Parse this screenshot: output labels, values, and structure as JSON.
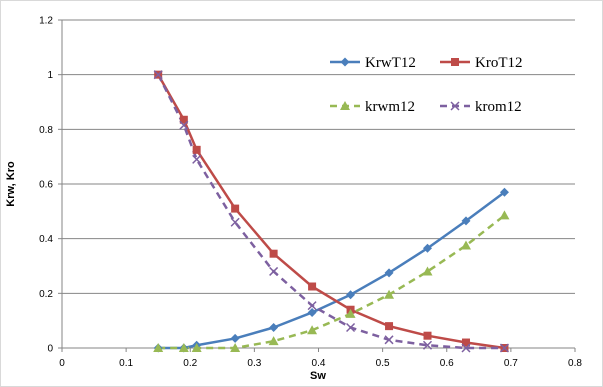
{
  "chart_data": {
    "type": "line",
    "title": "",
    "xlabel": "Sw",
    "ylabel": "Krw, Kro",
    "xlim": [
      0,
      0.8
    ],
    "ylim": [
      0,
      1.2
    ],
    "x_ticks": [
      "0",
      "0.1",
      "0.2",
      "0.3",
      "0.4",
      "0.5",
      "0.6",
      "0.7",
      "0.8"
    ],
    "y_ticks": [
      "0",
      "0.2",
      "0.4",
      "0.6",
      "0.8",
      "1",
      "1.2"
    ],
    "grid": "horizontal",
    "legend_placement": "top-right",
    "series": [
      {
        "name": "KrwT12",
        "color": "#4a7ebb",
        "style": "solid",
        "marker": "diamond",
        "points": [
          [
            0.15,
            0.0
          ],
          [
            0.19,
            0.0
          ],
          [
            0.21,
            0.01
          ],
          [
            0.27,
            0.035
          ],
          [
            0.33,
            0.075
          ],
          [
            0.39,
            0.13
          ],
          [
            0.45,
            0.195
          ],
          [
            0.51,
            0.275
          ],
          [
            0.57,
            0.365
          ],
          [
            0.63,
            0.465
          ],
          [
            0.69,
            0.57
          ]
        ]
      },
      {
        "name": "KroT12",
        "color": "#be4b48",
        "style": "solid",
        "marker": "square",
        "points": [
          [
            0.15,
            1.0
          ],
          [
            0.19,
            0.835
          ],
          [
            0.21,
            0.725
          ],
          [
            0.27,
            0.51
          ],
          [
            0.33,
            0.345
          ],
          [
            0.39,
            0.225
          ],
          [
            0.45,
            0.14
          ],
          [
            0.51,
            0.08
          ],
          [
            0.57,
            0.045
          ],
          [
            0.63,
            0.02
          ],
          [
            0.69,
            0.0
          ]
        ]
      },
      {
        "name": "krwm12",
        "color": "#98b954",
        "style": "dashed",
        "marker": "triangle",
        "points": [
          [
            0.15,
            0.0
          ],
          [
            0.19,
            0.0
          ],
          [
            0.21,
            0.0
          ],
          [
            0.27,
            0.0
          ],
          [
            0.33,
            0.025
          ],
          [
            0.39,
            0.065
          ],
          [
            0.45,
            0.125
          ],
          [
            0.51,
            0.195
          ],
          [
            0.57,
            0.28
          ],
          [
            0.63,
            0.375
          ],
          [
            0.69,
            0.485
          ]
        ]
      },
      {
        "name": "krom12",
        "color": "#7d60a0",
        "style": "dashed",
        "marker": "x",
        "points": [
          [
            0.15,
            1.0
          ],
          [
            0.19,
            0.815
          ],
          [
            0.21,
            0.69
          ],
          [
            0.27,
            0.46
          ],
          [
            0.33,
            0.28
          ],
          [
            0.39,
            0.155
          ],
          [
            0.45,
            0.075
          ],
          [
            0.51,
            0.03
          ],
          [
            0.57,
            0.01
          ],
          [
            0.63,
            0.0
          ],
          [
            0.69,
            0.0
          ]
        ]
      }
    ]
  }
}
